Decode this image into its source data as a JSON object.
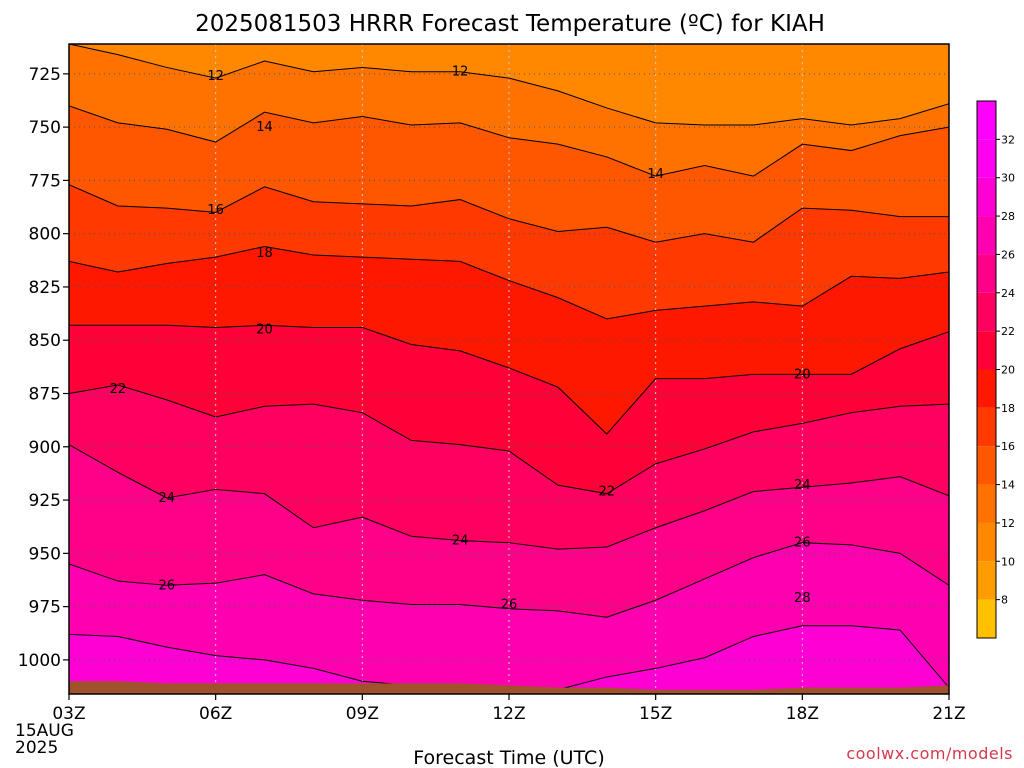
{
  "chart_data": {
    "type": "area",
    "title": "2025081503 HRRR Forecast Temperature (ºC) for KIAH",
    "xlabel": "Forecast Time (UTC)",
    "credit": "coolwx.com/models",
    "x_ticks": [
      {
        "hour": 3,
        "label": "03Z",
        "sublabels": [
          "15AUG",
          "2025"
        ]
      },
      {
        "hour": 6,
        "label": "06Z",
        "sublabels": []
      },
      {
        "hour": 9,
        "label": "09Z",
        "sublabels": []
      },
      {
        "hour": 12,
        "label": "12Z",
        "sublabels": []
      },
      {
        "hour": 15,
        "label": "15Z",
        "sublabels": []
      },
      {
        "hour": 18,
        "label": "18Z",
        "sublabels": []
      },
      {
        "hour": 21,
        "label": "21Z",
        "sublabels": []
      }
    ],
    "xlim": [
      3,
      21
    ],
    "y_ticks": [
      725,
      750,
      775,
      800,
      825,
      850,
      875,
      900,
      925,
      950,
      975,
      1000
    ],
    "ylim": [
      711,
      1016
    ],
    "y_scale": "pressure (hPa), increasing downward",
    "grid": true,
    "colorbar": {
      "placement": "right",
      "levels": [
        8,
        10,
        12,
        14,
        16,
        18,
        20,
        22,
        24,
        26,
        28,
        30,
        32
      ],
      "labels": [
        "8",
        "10",
        "12",
        "14",
        "16",
        "18",
        "20",
        "22",
        "24",
        "26",
        "28",
        "30",
        "32"
      ],
      "colors": [
        "#ffc000",
        "#ff9c00",
        "#ff8800",
        "#ff7200",
        "#ff5600",
        "#ff3a00",
        "#ff1800",
        "#ff0038",
        "#ff0060",
        "#ff0088",
        "#ff00b0",
        "#ff00d4",
        "#ff00f0",
        "#ff00ff"
      ]
    },
    "times": [
      3,
      4,
      5,
      6,
      7,
      8,
      9,
      10,
      11,
      12,
      13,
      14,
      15,
      16,
      17,
      18,
      19,
      20,
      21
    ],
    "contours": [
      {
        "value": 12,
        "label": "12",
        "pressures": [
          711,
          716,
          722,
          727,
          719,
          724,
          722,
          724,
          724,
          727,
          733,
          741,
          748,
          749,
          749,
          746,
          749,
          746,
          739
        ]
      },
      {
        "value": 14,
        "label": "14",
        "pressures": [
          740,
          748,
          751,
          757,
          743,
          748,
          745,
          749,
          748,
          755,
          758,
          764,
          773,
          768,
          773,
          758,
          761,
          754,
          750
        ]
      },
      {
        "value": 16,
        "label": "16",
        "pressures": [
          777,
          787,
          788,
          790,
          778,
          785,
          786,
          787,
          784,
          793,
          799,
          797,
          804,
          800,
          804,
          788,
          789,
          792,
          792
        ]
      },
      {
        "value": 18,
        "label": "18",
        "pressures": [
          813,
          818,
          814,
          811,
          806,
          810,
          811,
          812,
          813,
          822,
          830,
          840,
          836,
          834,
          832,
          834,
          820,
          821,
          818
        ]
      },
      {
        "value": 20,
        "label": "20",
        "pressures": [
          843,
          843,
          843,
          844,
          843,
          844,
          844,
          852,
          855,
          863,
          872,
          894,
          868,
          868,
          866,
          866,
          866,
          854,
          846
        ]
      },
      {
        "value": 22,
        "label": "22",
        "pressures": [
          875,
          871,
          878,
          886,
          881,
          880,
          884,
          897,
          899,
          902,
          918,
          922,
          908,
          901,
          893,
          889,
          884,
          881,
          880
        ]
      },
      {
        "value": 24,
        "label": "24",
        "pressures": [
          899,
          912,
          924,
          920,
          922,
          938,
          933,
          942,
          944,
          945,
          948,
          947,
          938,
          930,
          921,
          919,
          917,
          914,
          923
        ]
      },
      {
        "value": 26,
        "label": "26",
        "pressures": [
          955,
          963,
          965,
          964,
          960,
          969,
          972,
          974,
          974,
          976,
          977,
          980,
          972,
          962,
          952,
          945,
          946,
          950,
          965
        ]
      },
      {
        "value": 28,
        "label": "28",
        "pressures": [
          988,
          989,
          994,
          998,
          1000,
          1004,
          1010,
          1012,
          1012,
          1014,
          1014,
          1008,
          1004,
          999,
          989,
          984,
          984,
          986,
          1013
        ]
      }
    ],
    "contour_labels": [
      {
        "value": "12",
        "hour": 6,
        "pressure": 726
      },
      {
        "value": "12",
        "hour": 11,
        "pressure": 724
      },
      {
        "value": "14",
        "hour": 7,
        "pressure": 750
      },
      {
        "value": "14",
        "hour": 15,
        "pressure": 772
      },
      {
        "value": "16",
        "hour": 6,
        "pressure": 789
      },
      {
        "value": "18",
        "hour": 7,
        "pressure": 809
      },
      {
        "value": "20",
        "hour": 7,
        "pressure": 845
      },
      {
        "value": "20",
        "hour": 18,
        "pressure": 866
      },
      {
        "value": "22",
        "hour": 4,
        "pressure": 873
      },
      {
        "value": "22",
        "hour": 14,
        "pressure": 921
      },
      {
        "value": "24",
        "hour": 5,
        "pressure": 924
      },
      {
        "value": "24",
        "hour": 11,
        "pressure": 944
      },
      {
        "value": "24",
        "hour": 18,
        "pressure": 918
      },
      {
        "value": "26",
        "hour": 5,
        "pressure": 965
      },
      {
        "value": "26",
        "hour": 12,
        "pressure": 974
      },
      {
        "value": "26",
        "hour": 18,
        "pressure": 945
      },
      {
        "value": "28",
        "hour": 18,
        "pressure": 971
      }
    ],
    "surface_pressure": [
      1010,
      1010,
      1011,
      1011,
      1011,
      1011,
      1011,
      1011,
      1011,
      1012,
      1013,
      1013,
      1014,
      1014,
      1014,
      1013,
      1013,
      1013,
      1012
    ],
    "ground_color": "#a0522d"
  }
}
